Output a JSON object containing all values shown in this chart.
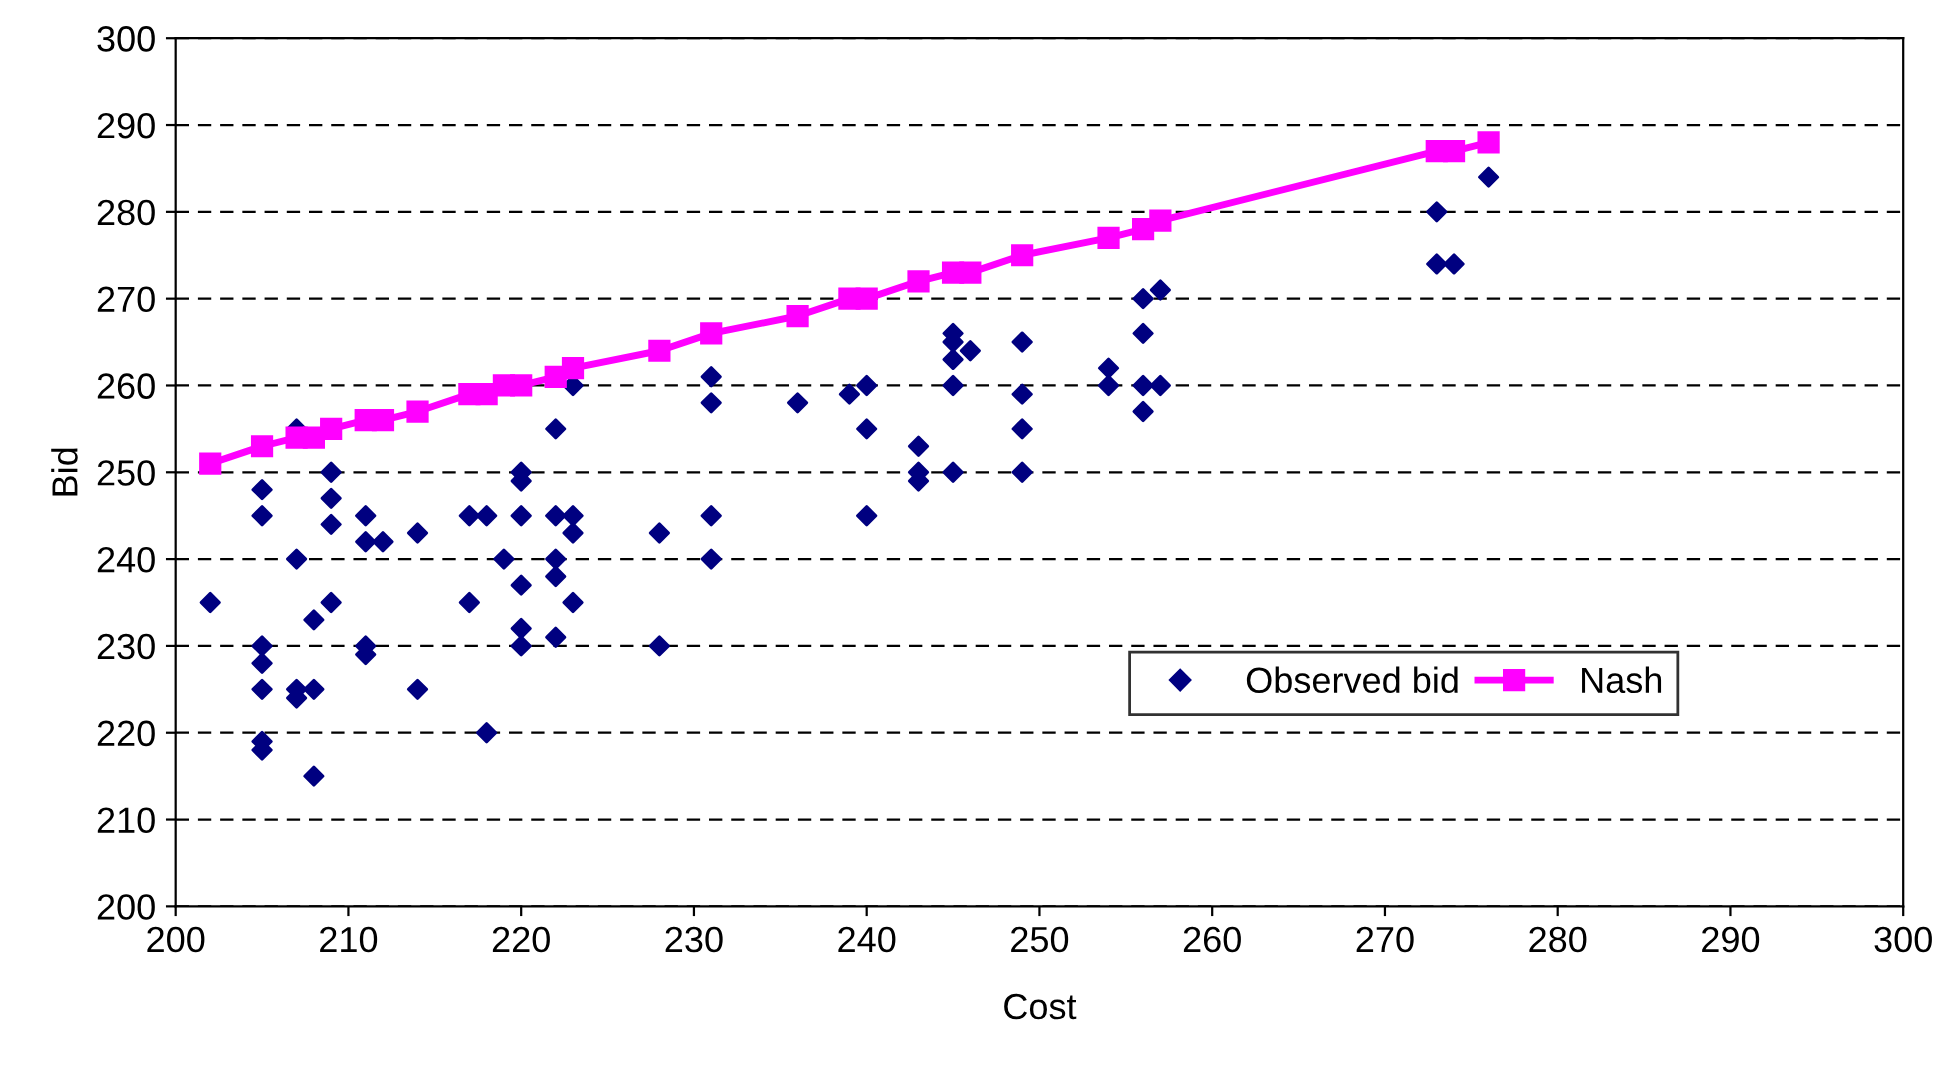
{
  "chart_data": {
    "type": "scatter",
    "xlabel": "Cost",
    "ylabel": "Bid",
    "xlim": [
      200,
      300
    ],
    "xticks": [
      200,
      210,
      220,
      230,
      240,
      250,
      260,
      270,
      280,
      290,
      300
    ],
    "ylim": [
      200,
      300
    ],
    "yticks": [
      200,
      210,
      220,
      230,
      240,
      250,
      260,
      270,
      280,
      290,
      300
    ],
    "grid": "y",
    "legend": "lower right",
    "series": [
      {
        "name": "Observed bid",
        "color": "#000080",
        "marker": "diamond",
        "x": [
          202,
          205,
          205,
          205,
          205,
          205,
          205,
          205,
          207,
          207,
          207,
          207,
          208,
          208,
          208,
          209,
          209,
          209,
          209,
          211,
          211,
          211,
          211,
          212,
          214,
          214,
          217,
          217,
          218,
          218,
          219,
          220,
          220,
          220,
          220,
          220,
          220,
          222,
          222,
          222,
          222,
          222,
          223,
          223,
          223,
          223,
          228,
          228,
          231,
          231,
          231,
          231,
          236,
          239,
          240,
          240,
          240,
          243,
          243,
          243,
          245,
          245,
          245,
          245,
          245,
          246,
          249,
          249,
          249,
          249,
          254,
          254,
          256,
          256,
          256,
          256,
          257,
          257,
          273,
          273,
          274,
          276
        ],
        "values": [
          235,
          248,
          245,
          230,
          228,
          225,
          219,
          218,
          255,
          240,
          225,
          224,
          233,
          225,
          215,
          250,
          247,
          244,
          235,
          245,
          242,
          230,
          229,
          242,
          243,
          225,
          245,
          235,
          245,
          220,
          240,
          250,
          249,
          245,
          237,
          232,
          230,
          255,
          245,
          240,
          238,
          231,
          260,
          245,
          243,
          235,
          243,
          230,
          261,
          258,
          245,
          240,
          258,
          259,
          260,
          255,
          245,
          253,
          250,
          249,
          266,
          265,
          263,
          260,
          250,
          264,
          265,
          259,
          255,
          250,
          262,
          260,
          270,
          266,
          260,
          257,
          271,
          260,
          280,
          274,
          274,
          284
        ]
      },
      {
        "name": "Nash",
        "color": "#ff00ff",
        "type": "line",
        "marker": "square",
        "x": [
          202,
          205,
          207,
          208,
          209,
          211,
          212,
          214,
          217,
          218,
          219,
          220,
          222,
          223,
          228,
          231,
          236,
          239,
          240,
          243,
          245,
          246,
          249,
          254,
          256,
          257,
          273,
          274,
          276
        ],
        "values": [
          251,
          253,
          254,
          254,
          255,
          256,
          256,
          257,
          259,
          259,
          260,
          260,
          261,
          262,
          264,
          266,
          268,
          270,
          270,
          272,
          273,
          273,
          275,
          277,
          278,
          279,
          287,
          287,
          288
        ]
      }
    ]
  }
}
